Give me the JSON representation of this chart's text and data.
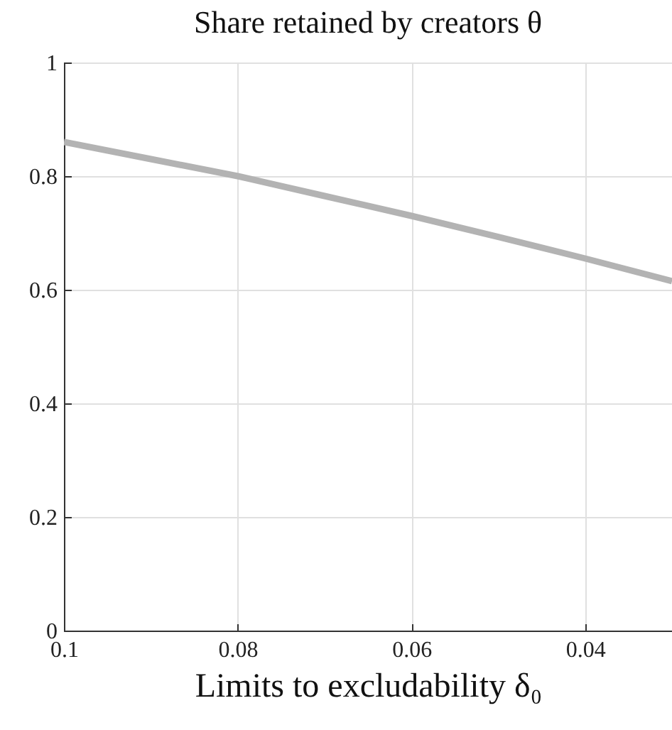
{
  "chart_data": {
    "type": "line",
    "title": "Share retained by creators θ",
    "xlabel": "Limits to excludability δ₀",
    "x": [
      0.1,
      0.09,
      0.08,
      0.07,
      0.06,
      0.05,
      0.04,
      0.03
    ],
    "series": [
      {
        "color": "#b3b3b3",
        "values": [
          0.86,
          0.83,
          0.8,
          0.765,
          0.73,
          0.693,
          0.655,
          0.615
        ]
      }
    ],
    "xlim": [
      0.1,
      0.03
    ],
    "xticks": [
      0.1,
      0.08,
      0.06,
      0.04
    ],
    "ylim": [
      0,
      1
    ],
    "yticks": [
      0,
      0.2,
      0.4,
      0.6,
      0.8,
      1
    ],
    "grid": true
  }
}
